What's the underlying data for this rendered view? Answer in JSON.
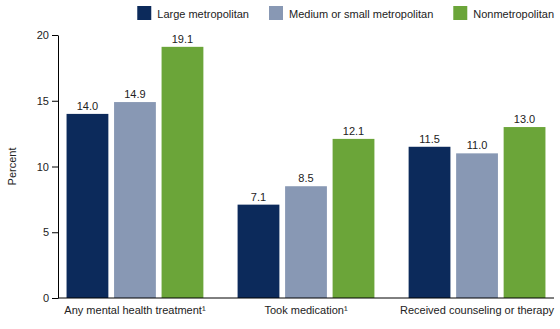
{
  "chart_data": {
    "type": "bar",
    "categories": [
      "Any mental health treatment¹",
      "Took medication¹",
      "Received counseling or therapy"
    ],
    "series": [
      {
        "name": "Large metropolitan",
        "color": "#0c2a5b",
        "values": [
          14.0,
          7.1,
          11.5
        ],
        "value_labels": [
          "14.0",
          "7.1",
          "11.5"
        ]
      },
      {
        "name": "Medium or small metropolitan",
        "color": "#8898b4",
        "values": [
          14.9,
          8.5,
          11.0
        ],
        "value_labels": [
          "14.9",
          "8.5",
          "11.0"
        ]
      },
      {
        "name": "Nonmetropolitan",
        "color": "#6ba539",
        "values": [
          19.1,
          12.1,
          13.0
        ],
        "value_labels": [
          "19.1",
          "12.1",
          "13.0"
        ]
      }
    ],
    "y_label": "Percent",
    "ylim": [
      0,
      20
    ],
    "yticks": [
      0,
      5,
      10,
      15,
      20
    ],
    "grid": false,
    "legend": "top",
    "data_labels": true
  }
}
